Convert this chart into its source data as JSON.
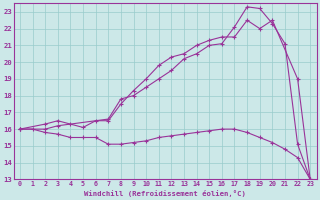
{
  "xlabel": "Windchill (Refroidissement éolien,°C)",
  "bg_color": "#cce8e8",
  "grid_color": "#99cccc",
  "line_color": "#993399",
  "spine_color": "#993399",
  "xlim": [
    -0.5,
    23.5
  ],
  "ylim": [
    13,
    23.5
  ],
  "xticks": [
    0,
    1,
    2,
    3,
    4,
    5,
    6,
    7,
    8,
    9,
    10,
    11,
    12,
    13,
    14,
    15,
    16,
    17,
    18,
    19,
    20,
    21,
    22,
    23
  ],
  "yticks": [
    13,
    14,
    15,
    16,
    17,
    18,
    19,
    20,
    21,
    22,
    23
  ],
  "curve1_x": [
    0,
    1,
    2,
    3,
    4,
    5,
    6,
    7,
    8,
    9,
    10,
    11,
    12,
    13,
    14,
    15,
    16,
    17,
    18,
    19,
    20,
    21,
    22,
    23
  ],
  "curve1_y": [
    16.0,
    16.0,
    15.8,
    15.7,
    15.5,
    15.5,
    15.5,
    15.1,
    15.1,
    15.2,
    15.3,
    15.5,
    15.6,
    15.7,
    15.8,
    15.9,
    16.0,
    16.0,
    15.8,
    15.5,
    15.2,
    14.8,
    14.3,
    13.0
  ],
  "curve2_x": [
    0,
    2,
    3,
    4,
    5,
    6,
    7,
    8,
    9,
    10,
    11,
    12,
    13,
    14,
    15,
    16,
    17,
    18,
    19,
    20,
    22,
    23
  ],
  "curve2_y": [
    16.0,
    16.3,
    16.5,
    16.3,
    16.1,
    16.5,
    16.5,
    17.5,
    18.3,
    19.0,
    19.8,
    20.3,
    20.5,
    21.0,
    21.3,
    21.5,
    21.5,
    22.5,
    22.0,
    22.5,
    19.0,
    13.0
  ],
  "curve3_x": [
    0,
    2,
    3,
    7,
    8,
    9,
    10,
    11,
    12,
    13,
    14,
    15,
    16,
    17,
    18,
    19,
    20,
    21,
    22,
    23
  ],
  "curve3_y": [
    16.0,
    16.0,
    16.2,
    16.6,
    17.8,
    18.0,
    18.5,
    19.0,
    19.5,
    20.2,
    20.5,
    21.0,
    21.1,
    22.1,
    23.3,
    23.2,
    22.3,
    21.1,
    15.1,
    13.0
  ]
}
